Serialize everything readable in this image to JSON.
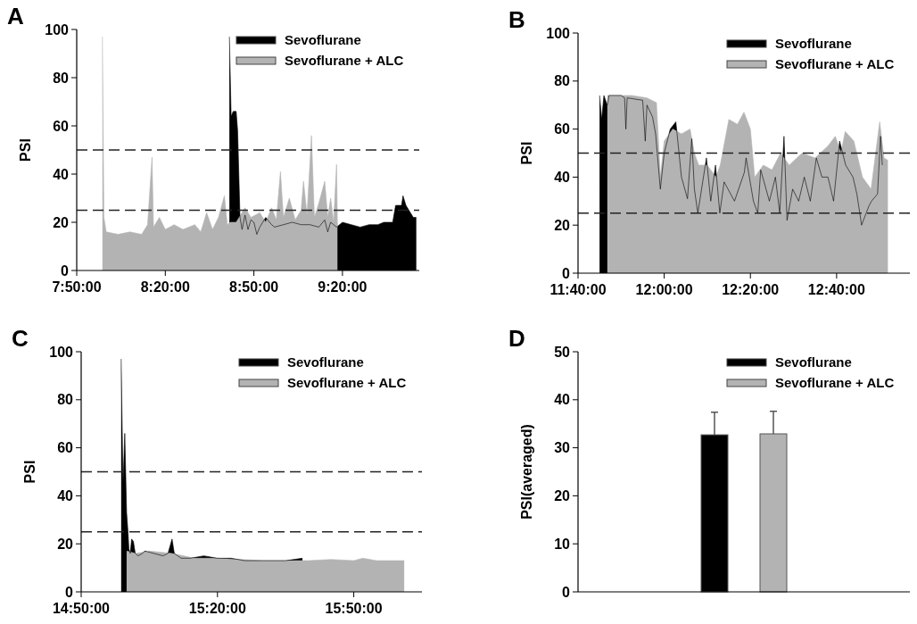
{
  "chart_data": [
    {
      "type": "area",
      "title": "A",
      "ylabel": "PSI",
      "legend": "top right",
      "ylim": [
        0,
        100
      ],
      "yticks": [
        0,
        20,
        40,
        60,
        80,
        100
      ],
      "xlim": [
        7.8333,
        9.7667
      ],
      "xticks": [
        {
          "value": 7.8333,
          "label": "7:50:00"
        },
        {
          "value": 8.3333,
          "label": "8:20:00"
        },
        {
          "value": 8.8333,
          "label": "8:50:00"
        },
        {
          "value": 9.3333,
          "label": "9:20:00"
        }
      ],
      "ref_lines": [
        {
          "axis": "y",
          "value": 50,
          "line_style": "dashed"
        },
        {
          "axis": "y",
          "value": 25,
          "line_style": "dashed"
        }
      ],
      "series": [
        {
          "name": "Sevoflurane",
          "color": "#000000",
          "x": [
            8.695,
            8.705,
            8.7167,
            8.7333,
            8.7417,
            8.755,
            8.7667,
            8.7833,
            8.8,
            8.8167,
            8.8333,
            8.85,
            8.8667,
            8.9,
            8.9333,
            8.95,
            9.0,
            9.05,
            9.1,
            9.15,
            9.2,
            9.2333,
            9.25,
            9.2667,
            9.3,
            9.3333,
            9.3833,
            9.4333,
            9.4833,
            9.5333,
            9.5667,
            9.6167,
            9.6333,
            9.6667,
            9.675,
            9.6917,
            9.7167,
            9.7333,
            9.75
          ],
          "values": [
            97,
            64,
            66,
            66,
            58,
            22,
            17,
            23,
            17,
            21,
            20,
            15,
            18,
            22,
            19,
            18,
            19,
            20,
            19,
            19,
            18,
            21,
            16,
            20,
            18,
            20,
            19,
            18,
            19,
            19,
            20,
            20,
            27,
            27,
            31,
            27,
            24,
            22,
            22
          ]
        },
        {
          "name": "Sevoflurane + ALC",
          "color": "#b3b3b3",
          "x": [
            7.9783,
            7.9867,
            8.0,
            8.0667,
            8.1333,
            8.2,
            8.2333,
            8.2583,
            8.2667,
            8.3,
            8.3333,
            8.3833,
            8.4333,
            8.5,
            8.5333,
            8.5667,
            8.6,
            8.6333,
            8.6667,
            8.6833,
            8.7,
            8.7333,
            8.7833,
            8.8167,
            8.8667,
            8.9,
            8.9333,
            8.96,
            8.9833,
            9.0,
            9.0333,
            9.0667,
            9.1,
            9.1133,
            9.1333,
            9.1583,
            9.175,
            9.2,
            9.2333,
            9.25,
            9.2667,
            9.2833,
            9.3,
            9.305
          ],
          "values": [
            97,
            22,
            16,
            15,
            16,
            15,
            19,
            47,
            18,
            22,
            17,
            19,
            17,
            19,
            16,
            24,
            17,
            22,
            31,
            19,
            20,
            20,
            26,
            22,
            24,
            20,
            26,
            21,
            41,
            22,
            30,
            21,
            25,
            37,
            23,
            56,
            22,
            28,
            37,
            22,
            30,
            20,
            44,
            18
          ]
        }
      ]
    },
    {
      "type": "area",
      "title": "B",
      "ylabel": "PSI",
      "legend": "top right",
      "ylim": [
        0,
        100
      ],
      "yticks": [
        0,
        20,
        40,
        60,
        80,
        100
      ],
      "xlim": [
        11.6667,
        12.95
      ],
      "xticks": [
        {
          "value": 11.6667,
          "label": "11:40:00"
        },
        {
          "value": 12.0,
          "label": "12:00:00"
        },
        {
          "value": 12.3333,
          "label": "12:20:00"
        },
        {
          "value": 12.6667,
          "label": "12:40:00"
        }
      ],
      "ref_lines": [
        {
          "axis": "y",
          "value": 50,
          "line_style": "dashed"
        },
        {
          "axis": "y",
          "value": 25,
          "line_style": "dashed"
        }
      ],
      "series": [
        {
          "name": "Sevoflurane",
          "color": "#000000",
          "x": [
            11.75,
            11.7583,
            11.7667,
            11.78,
            11.7867,
            11.8333,
            11.8467,
            11.8517,
            11.8567,
            11.9167,
            11.9267,
            11.9333,
            11.955,
            11.9667,
            11.985,
            12.0,
            12.0233,
            12.045,
            12.0667,
            12.09,
            12.1067,
            12.1167,
            12.13,
            12.1633,
            12.18,
            12.1983,
            12.215,
            12.2317,
            12.2717,
            12.31,
            12.3167,
            12.345,
            12.3617,
            12.3733,
            12.4067,
            12.43,
            12.4467,
            12.4633,
            12.475,
            12.4967,
            12.52,
            12.5417,
            12.565,
            12.5883,
            12.61,
            12.6333,
            12.655,
            12.6783,
            12.7017,
            12.73,
            12.745,
            12.7633,
            12.7917,
            12.8017,
            12.825,
            12.8367,
            12.8433
          ],
          "values": [
            74,
            64,
            74,
            70,
            74,
            74,
            73,
            60,
            73,
            72,
            55,
            70,
            65,
            58,
            35,
            50,
            60,
            63,
            40,
            31,
            56,
            35,
            25,
            48,
            30,
            45,
            25,
            38,
            30,
            42,
            48,
            30,
            25,
            43,
            30,
            40,
            25,
            57,
            22,
            35,
            30,
            40,
            30,
            48,
            40,
            40,
            30,
            55,
            45,
            40,
            33,
            20,
            28,
            30,
            33,
            57,
            45
          ]
        },
        {
          "name": "Sevoflurane + ALC",
          "color": "#b3b3b3",
          "x": [
            11.78,
            11.875,
            11.9333,
            11.97,
            11.985,
            12.0,
            12.0333,
            12.0667,
            12.1,
            12.1167,
            12.1333,
            12.1667,
            12.2,
            12.2167,
            12.25,
            12.2833,
            12.3083,
            12.3333,
            12.35,
            12.3833,
            12.4167,
            12.45,
            12.4833,
            12.5333,
            12.5833,
            12.6333,
            12.6617,
            12.6833,
            12.7,
            12.7333,
            12.7667,
            12.8,
            12.8333,
            12.85,
            12.865
          ],
          "values": [
            74,
            74,
            73,
            71,
            40,
            55,
            60,
            58,
            60,
            50,
            45,
            45,
            40,
            45,
            64,
            62,
            67,
            60,
            40,
            45,
            43,
            50,
            45,
            50,
            48,
            53,
            57,
            50,
            59,
            55,
            40,
            35,
            63,
            48,
            47
          ]
        }
      ]
    },
    {
      "type": "area",
      "title": "C",
      "ylabel": "PSI",
      "legend": "top right",
      "ylim": [
        0,
        100
      ],
      "yticks": [
        0,
        20,
        40,
        60,
        80,
        100
      ],
      "xlim": [
        14.8333,
        16.0833
      ],
      "xticks": [
        {
          "value": 14.8333,
          "label": "14:50:00"
        },
        {
          "value": 15.3333,
          "label": "15:20:00"
        },
        {
          "value": 15.8333,
          "label": "15:50:00"
        }
      ],
      "ref_lines": [
        {
          "axis": "y",
          "value": 50,
          "line_style": "dashed"
        },
        {
          "axis": "y",
          "value": 25,
          "line_style": "dashed"
        }
      ],
      "series": [
        {
          "name": "Sevoflurane",
          "color": "#000000",
          "x": [
            14.98,
            14.9867,
            14.9933,
            15.0,
            15.005,
            15.0083,
            15.0133,
            15.0183,
            15.025,
            15.0317,
            15.0417,
            15.0583,
            15.0667,
            15.1,
            15.1333,
            15.1517,
            15.1667,
            15.175,
            15.2,
            15.2333,
            15.2833,
            15.3333,
            15.3833,
            15.4333,
            15.5,
            15.55,
            15.5833,
            15.645
          ],
          "values": [
            97,
            45,
            66,
            33,
            25,
            18,
            16,
            22,
            21,
            16,
            15,
            16,
            17,
            16,
            15,
            16,
            22,
            16,
            14,
            14,
            15,
            14,
            14,
            13,
            13,
            13,
            13,
            14
          ]
        },
        {
          "name": "Sevoflurane + ALC",
          "color": "#b3b3b3",
          "x": [
            15.0,
            15.0333,
            15.0833,
            15.1667,
            15.25,
            15.3333,
            15.5,
            15.6667,
            15.75,
            15.8333,
            15.8667,
            15.9167,
            16.0,
            16.0183
          ],
          "values": [
            17,
            16,
            17,
            16,
            14,
            14,
            13,
            13,
            13.5,
            13,
            14,
            13,
            13,
            13
          ]
        }
      ]
    },
    {
      "type": "bar",
      "title": "D",
      "ylabel": "PSI(averaged)",
      "legend": "top right",
      "ylim": [
        0,
        50
      ],
      "yticks": [
        0,
        10,
        20,
        30,
        40,
        50
      ],
      "categories": [
        null
      ],
      "series": [
        {
          "name": "Sevoflurane",
          "color": "#000000",
          "values": [
            32.7
          ],
          "errors": [
            [
              32.7,
              37.4
            ]
          ]
        },
        {
          "name": "Sevoflurane + ALC",
          "color": "#b3b3b3",
          "values": [
            32.9
          ],
          "errors": [
            [
              32.9,
              37.6
            ]
          ]
        }
      ]
    }
  ]
}
